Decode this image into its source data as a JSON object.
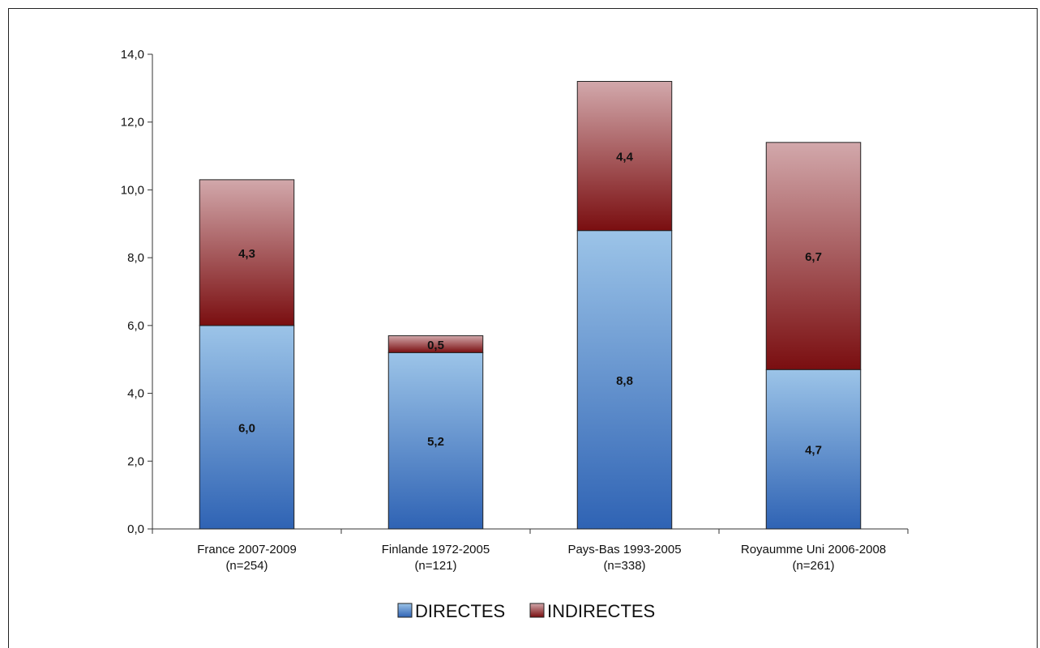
{
  "chart_data": {
    "type": "bar",
    "stacked": true,
    "categories": [
      [
        "France 2007-2009",
        "(n=254)"
      ],
      [
        "Finlande 1972-2005",
        "(n=121)"
      ],
      [
        "Pays-Bas 1993-2005",
        "(n=338)"
      ],
      [
        "Royaumme Uni 2006-2008",
        "(n=261)"
      ]
    ],
    "series": [
      {
        "name": "DIRECTES",
        "values": [
          6.0,
          5.2,
          8.8,
          4.7
        ],
        "labels": [
          "6,0",
          "5,2",
          "8,8",
          "4,7"
        ],
        "color_top": "#9cc4e8",
        "color_bottom": "#2f63b4"
      },
      {
        "name": "INDIRECTES",
        "values": [
          4.3,
          0.5,
          4.4,
          6.7
        ],
        "labels": [
          "4,3",
          "0,5",
          "4,4",
          "6,7"
        ],
        "color_top": "#d2a8ab",
        "color_bottom": "#7a0e10"
      }
    ],
    "ylim": [
      0,
      14
    ],
    "yticks": [
      0,
      2,
      4,
      6,
      8,
      10,
      12,
      14
    ],
    "ytick_labels": [
      "0,0",
      "2,0",
      "4,0",
      "6,0",
      "8,0",
      "10,0",
      "12,0",
      "14,0"
    ],
    "grid": false,
    "legend": "bottom-center",
    "title": "",
    "xlabel": "",
    "ylabel": ""
  }
}
